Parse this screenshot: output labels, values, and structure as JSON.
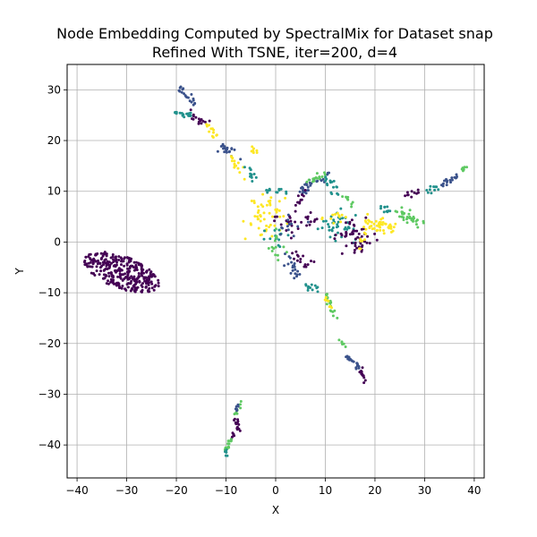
{
  "chart_data": {
    "type": "scatter",
    "title_line1": "Node Embedding Computed by SpectralMix for Dataset snap",
    "title_line2": "Refined With TSNE, iter=200, d=4",
    "xlabel": "X",
    "ylabel": "Y",
    "xlim": [
      -42,
      42
    ],
    "ylim": [
      -46.5,
      35
    ],
    "xticks": [
      -40,
      -30,
      -20,
      -10,
      0,
      10,
      20,
      30,
      40
    ],
    "yticks": [
      -40,
      -30,
      -20,
      -10,
      0,
      10,
      20,
      30
    ],
    "grid": true,
    "palette": [
      "#440154",
      "#3b528b",
      "#21918c",
      "#5ec962",
      "#fde725"
    ],
    "seed": 7,
    "clusters": [
      {
        "type": "ellipse",
        "cx": -31,
        "cy": -6,
        "rx": 8,
        "ry": 3.2,
        "angle": -20,
        "n": 320,
        "color": 0
      },
      {
        "type": "seg",
        "from": [
          -20,
          31
        ],
        "to": [
          -16,
          27
        ],
        "n": 20,
        "color": 1,
        "spread": 0.5
      },
      {
        "type": "seg",
        "from": [
          -20,
          25.5
        ],
        "to": [
          -17,
          25
        ],
        "n": 18,
        "color": 2,
        "spread": 0.5
      },
      {
        "type": "seg",
        "from": [
          -17,
          25
        ],
        "to": [
          -14,
          23
        ],
        "n": 15,
        "color": 0,
        "spread": 0.6
      },
      {
        "type": "seg",
        "from": [
          -14,
          23
        ],
        "to": [
          -12,
          21
        ],
        "n": 12,
        "color": 4,
        "spread": 0.6
      },
      {
        "type": "seg",
        "from": [
          -11,
          19
        ],
        "to": [
          -8,
          17
        ],
        "n": 22,
        "color": 1,
        "spread": 0.9
      },
      {
        "type": "seg",
        "from": [
          -9,
          17
        ],
        "to": [
          -6,
          13
        ],
        "n": 14,
        "color": 4,
        "spread": 0.7
      },
      {
        "type": "seg",
        "from": [
          -6,
          15
        ],
        "to": [
          -4,
          12
        ],
        "n": 12,
        "color": 2,
        "spread": 0.7
      },
      {
        "type": "seg",
        "from": [
          -5,
          19
        ],
        "to": [
          -3,
          17
        ],
        "n": 8,
        "color": 4,
        "spread": 0.6
      },
      {
        "type": "seg",
        "from": [
          -2,
          10
        ],
        "to": [
          2,
          10
        ],
        "n": 12,
        "color": 2,
        "spread": 0.5
      },
      {
        "type": "blob",
        "cx": -2,
        "cy": 5,
        "sx": 2,
        "sy": 2.2,
        "n": 55,
        "color": 4
      },
      {
        "type": "blob",
        "cx": 0,
        "cy": 1,
        "sx": 1.3,
        "sy": 1.3,
        "n": 15,
        "color": 2
      },
      {
        "type": "blob",
        "cx": 2,
        "cy": 4,
        "sx": 1.5,
        "sy": 1.5,
        "n": 15,
        "color": 0
      },
      {
        "type": "seg",
        "from": [
          5,
          10
        ],
        "to": [
          10,
          13
        ],
        "n": 30,
        "color": 5,
        "spread": 0.9
      },
      {
        "type": "seg",
        "from": [
          7,
          12
        ],
        "to": [
          10,
          13.5
        ],
        "n": 15,
        "color": 3,
        "spread": 0.8
      },
      {
        "type": "seg",
        "from": [
          10,
          13
        ],
        "to": [
          13,
          9
        ],
        "n": 16,
        "color": 2,
        "spread": 0.7
      },
      {
        "type": "seg",
        "from": [
          14,
          9
        ],
        "to": [
          15.5,
          7
        ],
        "n": 8,
        "color": 3,
        "spread": 0.5
      },
      {
        "type": "seg",
        "from": [
          6,
          10
        ],
        "to": [
          4,
          7
        ],
        "n": 10,
        "color": 0,
        "spread": 0.7
      },
      {
        "type": "blob",
        "cx": 3,
        "cy": 3,
        "sx": 1.4,
        "sy": 1,
        "n": 12,
        "color": 1
      },
      {
        "type": "blob",
        "cx": 7,
        "cy": 4,
        "sx": 1.3,
        "sy": 1,
        "n": 12,
        "color": 0
      },
      {
        "type": "blob",
        "cx": 12,
        "cy": 3,
        "sx": 2,
        "sy": 1.6,
        "n": 40,
        "color": 2
      },
      {
        "type": "blob",
        "cx": 16,
        "cy": 1,
        "sx": 1.8,
        "sy": 1.6,
        "n": 55,
        "color": 0
      },
      {
        "type": "seg",
        "from": [
          17,
          -1
        ],
        "to": [
          18,
          2
        ],
        "n": 10,
        "color": 4,
        "spread": 0.7
      },
      {
        "type": "blob",
        "cx": 12,
        "cy": 5,
        "sx": 1.2,
        "sy": 1,
        "n": 12,
        "color": 4
      },
      {
        "type": "seg",
        "from": [
          18,
          4
        ],
        "to": [
          24,
          3
        ],
        "n": 45,
        "color": 4,
        "spread": 1.2
      },
      {
        "type": "seg",
        "from": [
          21,
          8
        ],
        "to": [
          23,
          6
        ],
        "n": 10,
        "color": 2,
        "spread": 0.6
      },
      {
        "type": "seg",
        "from": [
          24,
          6
        ],
        "to": [
          29,
          4
        ],
        "n": 35,
        "color": 3,
        "spread": 1.0
      },
      {
        "type": "seg",
        "from": [
          26,
          9
        ],
        "to": [
          29,
          10
        ],
        "n": 10,
        "color": 0,
        "spread": 0.5
      },
      {
        "type": "seg",
        "from": [
          30,
          9.5
        ],
        "to": [
          33,
          11
        ],
        "n": 10,
        "color": 2,
        "spread": 0.5
      },
      {
        "type": "seg",
        "from": [
          33,
          11
        ],
        "to": [
          37,
          13.5
        ],
        "n": 18,
        "color": 1,
        "spread": 0.5
      },
      {
        "type": "seg",
        "from": [
          37,
          14
        ],
        "to": [
          38.5,
          15
        ],
        "n": 10,
        "color": 3,
        "spread": 0.4
      },
      {
        "type": "blob",
        "cx": 0,
        "cy": -1,
        "sx": 1.2,
        "sy": 1.5,
        "n": 14,
        "color": 3
      },
      {
        "type": "seg",
        "from": [
          2,
          -3
        ],
        "to": [
          5,
          -7
        ],
        "n": 20,
        "color": 1,
        "spread": 1.0
      },
      {
        "type": "seg",
        "from": [
          3,
          -2
        ],
        "to": [
          7,
          -5
        ],
        "n": 15,
        "color": 0,
        "spread": 1.0
      },
      {
        "type": "seg",
        "from": [
          6,
          -8
        ],
        "to": [
          9,
          -10
        ],
        "n": 12,
        "color": 2,
        "spread": 0.8
      },
      {
        "type": "seg",
        "from": [
          10,
          -10
        ],
        "to": [
          12,
          -15
        ],
        "n": 18,
        "color": 3,
        "spread": 0.5
      },
      {
        "type": "seg",
        "from": [
          10,
          -11
        ],
        "to": [
          11,
          -13
        ],
        "n": 8,
        "color": 4,
        "spread": 0.4
      },
      {
        "type": "seg",
        "from": [
          13,
          -19
        ],
        "to": [
          14,
          -21
        ],
        "n": 6,
        "color": 3,
        "spread": 0.3
      },
      {
        "type": "seg",
        "from": [
          14,
          -22
        ],
        "to": [
          17,
          -25
        ],
        "n": 22,
        "color": 1,
        "spread": 0.5
      },
      {
        "type": "seg",
        "from": [
          17,
          -25
        ],
        "to": [
          18,
          -28
        ],
        "n": 14,
        "color": 0,
        "spread": 0.4
      },
      {
        "type": "seg",
        "from": [
          -7,
          -31
        ],
        "to": [
          -8,
          -34
        ],
        "n": 8,
        "color": 3,
        "spread": 0.3
      },
      {
        "type": "seg",
        "from": [
          -7.5,
          -32
        ],
        "to": [
          -8,
          -34
        ],
        "n": 6,
        "color": 1,
        "spread": 0.3
      },
      {
        "type": "seg",
        "from": [
          -8,
          -35
        ],
        "to": [
          -7.5,
          -37
        ],
        "n": 16,
        "color": 0,
        "spread": 0.4
      },
      {
        "type": "seg",
        "from": [
          -8.5,
          -37.5
        ],
        "to": [
          -9,
          -39
        ],
        "n": 6,
        "color": 0,
        "spread": 0.3
      },
      {
        "type": "seg",
        "from": [
          -9,
          -39
        ],
        "to": [
          -10,
          -41
        ],
        "n": 14,
        "color": 3,
        "spread": 0.4
      },
      {
        "type": "seg",
        "from": [
          -10,
          -41
        ],
        "to": [
          -10,
          -42
        ],
        "n": 6,
        "color": 2,
        "spread": 0.3
      }
    ]
  }
}
